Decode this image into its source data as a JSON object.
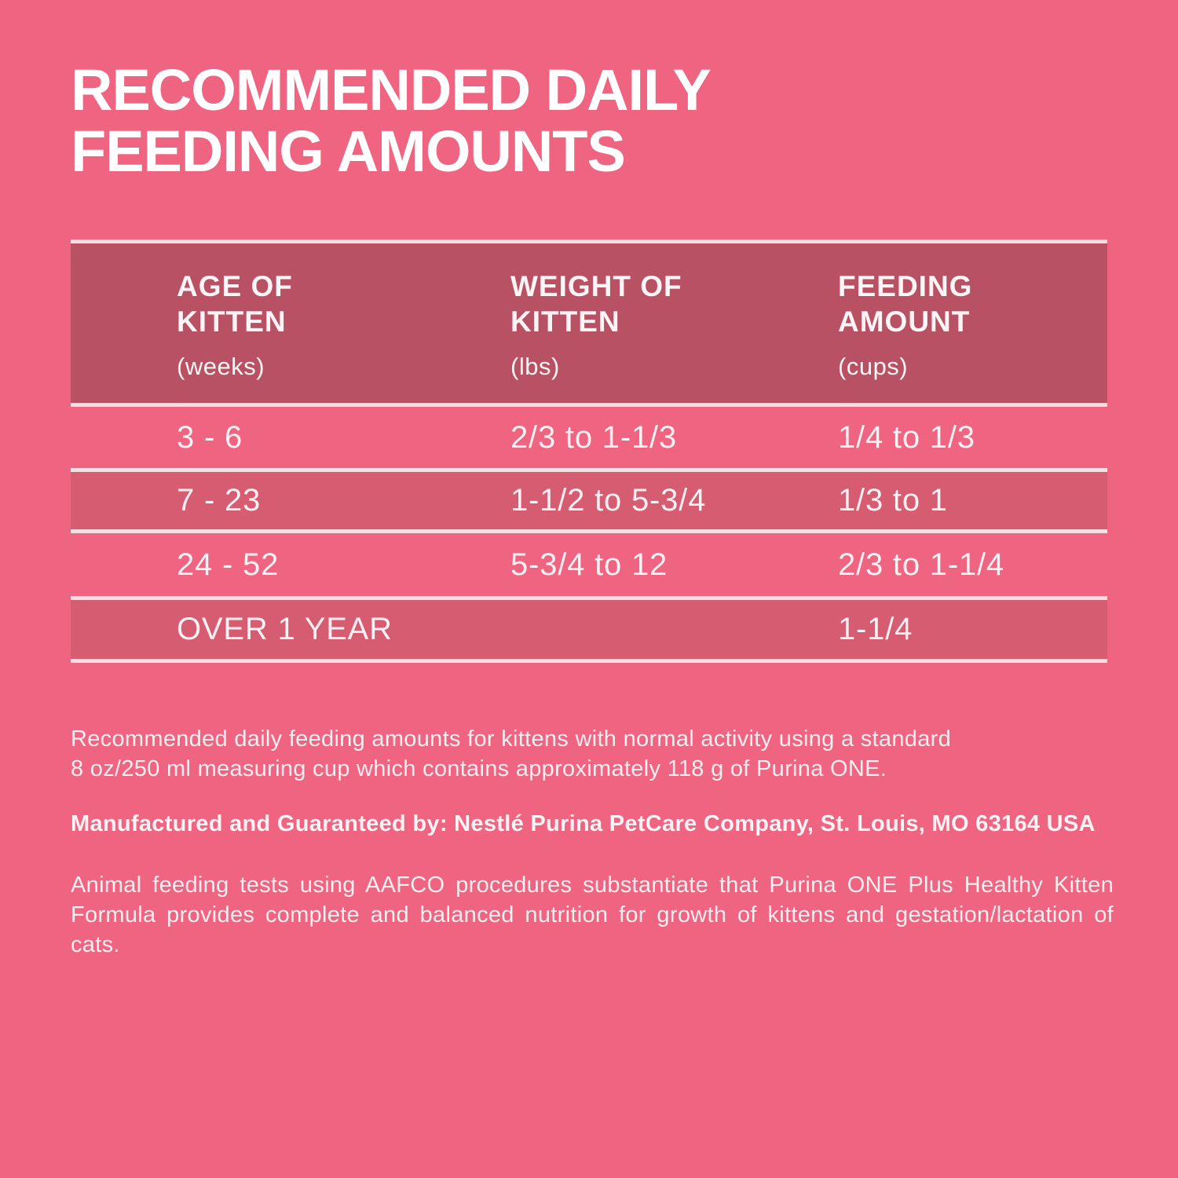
{
  "theme": {
    "background": "#ef6480",
    "table_header_bg": "#b85163",
    "table_alt_row_bg": "#d65c72",
    "divider": "#f4dfe4",
    "text": "#ffffff"
  },
  "header": {
    "title_line1": "RECOMMENDED DAILY",
    "title_line2": "FEEDING AMOUNTS"
  },
  "table": {
    "columns": [
      {
        "title_line1": "AGE OF",
        "title_line2": "KITTEN",
        "unit": "(weeks)"
      },
      {
        "title_line1": "WEIGHT OF",
        "title_line2": "KITTEN",
        "unit": "(lbs)"
      },
      {
        "title_line1": "FEEDING",
        "title_line2": "AMOUNT",
        "unit": "(cups)"
      }
    ],
    "rows": [
      {
        "age": "3 - 6",
        "weight": "2/3 to 1-1/3",
        "amount": "1/4 to 1/3"
      },
      {
        "age": "7 - 23",
        "weight": "1-1/2 to 5-3/4",
        "amount": "1/3 to 1"
      },
      {
        "age": "24 - 52",
        "weight": "5-3/4 to 12",
        "amount": "2/3 to 1-1/4"
      },
      {
        "age": "OVER 1 YEAR",
        "weight": "",
        "amount": "1-1/4"
      }
    ]
  },
  "notes": {
    "measuring_line1": "Recommended daily feeding amounts for kittens with normal activity using a standard",
    "measuring_line2": "8 oz/250 ml measuring cup which contains approximately 118 g of Purina ONE.",
    "manufacturer": "Manufactured and Guaranteed by: Nestlé Purina PetCare Company, St. Louis, MO 63164 USA",
    "aafco_line1": "Animal feeding tests using AAFCO procedures substantiate that Purina ONE Plus Healthy Kitten",
    "aafco_line2": "Formula provides complete and balanced nutrition for growth of kittens and gestation/lactation of",
    "aafco_line3": "cats."
  }
}
